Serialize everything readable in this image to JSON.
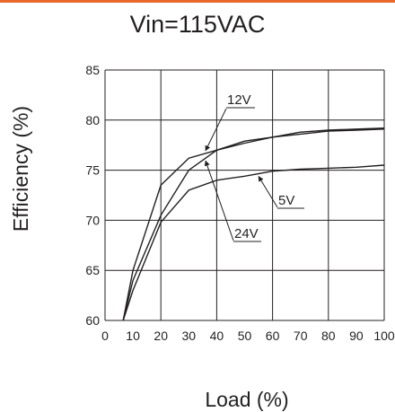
{
  "colors": {
    "top_rule": "#e8682c",
    "grid": "#231f20",
    "curve": "#231f20",
    "background": "#ffffff"
  },
  "chart_data": {
    "type": "line",
    "title": "Vin=115VAC",
    "xlabel": "Load (%)",
    "ylabel": "Efficiency (%)",
    "xlim": [
      0,
      100
    ],
    "ylim": [
      60,
      85
    ],
    "x_ticks": [
      "0",
      "10",
      "20",
      "30",
      "40",
      "50",
      "60",
      "70",
      "80",
      "90",
      "100"
    ],
    "y_ticks": [
      "85",
      "80",
      "75",
      "70",
      "65",
      "60"
    ],
    "grid": true,
    "legend": "none (inline callout labels)",
    "series": [
      {
        "name": "12V",
        "x": [
          6.5,
          10,
          20,
          30,
          40,
          50,
          60,
          70,
          80,
          90,
          100
        ],
        "y": [
          60,
          65,
          73.5,
          76.2,
          77,
          77.7,
          78.3,
          78.8,
          79.0,
          79.1,
          79.2
        ]
      },
      {
        "name": "24V",
        "x": [
          6.5,
          10,
          20,
          30,
          40,
          50,
          60,
          70,
          80,
          90,
          100
        ],
        "y": [
          60,
          64,
          70.5,
          75,
          77,
          77.9,
          78.3,
          78.6,
          78.9,
          79.0,
          79.1
        ]
      },
      {
        "name": "5V",
        "x": [
          6.5,
          10,
          20,
          30,
          40,
          50,
          60,
          70,
          80,
          90,
          100
        ],
        "y": [
          60,
          63,
          69.8,
          73,
          74,
          74.4,
          74.9,
          75.1,
          75.2,
          75.3,
          75.5
        ]
      }
    ],
    "annotations": [
      "12V",
      "24V",
      "5V"
    ]
  }
}
